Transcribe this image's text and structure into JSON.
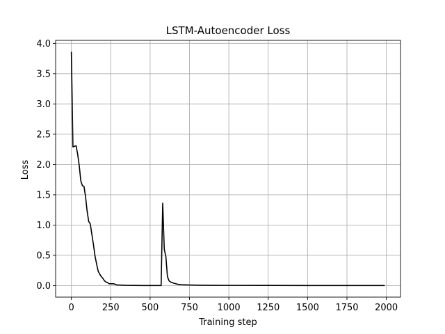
{
  "chart_data": {
    "type": "line",
    "title": "LSTM-Autoencoder Loss",
    "xlabel": "Training step",
    "ylabel": "Loss",
    "xlim": [
      -100,
      2090
    ],
    "ylim": [
      -0.19,
      4.05
    ],
    "grid": true,
    "xticks": [
      0,
      250,
      500,
      750,
      1000,
      1250,
      1500,
      1750,
      2000
    ],
    "xtick_labels": [
      "0",
      "250",
      "500",
      "750",
      "1000",
      "1250",
      "1500",
      "1750",
      "2000"
    ],
    "yticks": [
      0.0,
      0.5,
      1.0,
      1.5,
      2.0,
      2.5,
      3.0,
      3.5,
      4.0
    ],
    "ytick_labels": [
      "0.0",
      "0.5",
      "1.0",
      "1.5",
      "2.0",
      "2.5",
      "3.0",
      "3.5",
      "4.0"
    ],
    "series": [
      {
        "color": "#000000",
        "x": [
          0,
          10,
          20,
          30,
          40,
          50,
          60,
          70,
          80,
          90,
          100,
          110,
          120,
          130,
          140,
          150,
          160,
          170,
          180,
          190,
          200,
          210,
          220,
          230,
          240,
          250,
          260,
          270,
          280,
          290,
          300,
          350,
          400,
          450,
          500,
          550,
          570,
          580,
          590,
          600,
          610,
          620,
          630,
          650,
          680,
          700,
          750,
          800,
          900,
          1000,
          1250,
          1500,
          1750,
          1990
        ],
        "y": [
          3.86,
          2.29,
          2.3,
          2.31,
          2.17,
          1.98,
          1.73,
          1.65,
          1.64,
          1.47,
          1.23,
          1.06,
          1.02,
          0.85,
          0.68,
          0.49,
          0.36,
          0.24,
          0.19,
          0.15,
          0.12,
          0.08,
          0.06,
          0.05,
          0.03,
          0.03,
          0.03,
          0.03,
          0.02,
          0.01,
          0.01,
          0.005,
          0.003,
          0.002,
          0.002,
          0.002,
          0.002,
          1.36,
          0.6,
          0.48,
          0.15,
          0.08,
          0.06,
          0.04,
          0.02,
          0.015,
          0.01,
          0.008,
          0.005,
          0.004,
          0.003,
          0.002,
          0.002,
          0.002
        ]
      }
    ]
  }
}
